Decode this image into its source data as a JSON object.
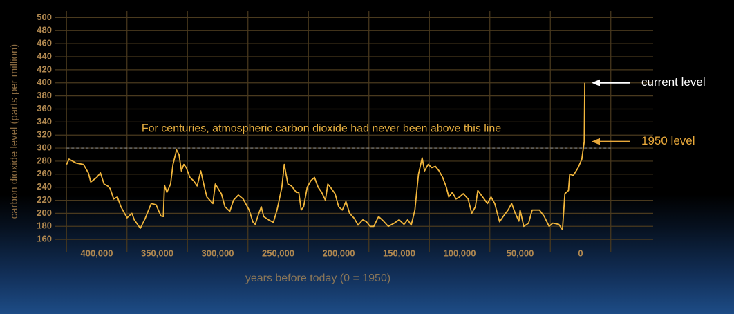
{
  "chart_data": {
    "type": "line",
    "ylabel": "carbon dioxide level (parts per million)",
    "xlabel": "years before today (0 = 1950)",
    "xlim": [
      440000,
      -60000
    ],
    "ylim": [
      140,
      510
    ],
    "xticks": [
      {
        "value": 400000,
        "label": "400,000"
      },
      {
        "value": 350000,
        "label": "350,000"
      },
      {
        "value": 300000,
        "label": "300,000"
      },
      {
        "value": 250000,
        "label": "250,000"
      },
      {
        "value": 200000,
        "label": "200,000"
      },
      {
        "value": 150000,
        "label": "150,000"
      },
      {
        "value": 100000,
        "label": "100,000"
      },
      {
        "value": 50000,
        "label": "50,000"
      },
      0
    ],
    "xgrid": [
      425000,
      375000,
      325000,
      275000,
      225000,
      175000,
      125000,
      75000,
      25000,
      -25000
    ],
    "yticks": [
      160,
      180,
      200,
      220,
      240,
      260,
      280,
      300,
      320,
      340,
      360,
      380,
      400,
      420,
      440,
      460,
      480,
      500
    ],
    "grid": true,
    "threshold": {
      "value": 300,
      "label": "For centuries, atmospheric carbon dioxide had never been above this line"
    },
    "annotations": [
      {
        "text": "current level",
        "value": 400,
        "color": "#ffffff"
      },
      {
        "text": "1950 level",
        "value": 310,
        "color": "#e8a83a"
      }
    ],
    "series": [
      {
        "name": "CO2",
        "color": "#f2b63c",
        "x": [
          425000,
          423000,
          417000,
          411000,
          407000,
          405000,
          400000,
          397000,
          394000,
          391000,
          389000,
          386000,
          383000,
          380000,
          375000,
          371000,
          369000,
          364000,
          360000,
          355000,
          351000,
          347000,
          345000,
          344000,
          342000,
          339000,
          337000,
          334000,
          332000,
          330000,
          328000,
          326000,
          323000,
          320000,
          317000,
          314000,
          311000,
          309000,
          304000,
          302000,
          297000,
          294000,
          290000,
          287000,
          283000,
          279000,
          274000,
          271000,
          269000,
          266000,
          264000,
          262000,
          258000,
          254000,
          251000,
          250000,
          247000,
          245000,
          242000,
          239000,
          235000,
          233000,
          231000,
          229000,
          226000,
          223000,
          220000,
          217000,
          214000,
          211000,
          209000,
          206000,
          203000,
          200000,
          197000,
          194000,
          191000,
          187000,
          184000,
          180000,
          177000,
          174000,
          171000,
          167000,
          163000,
          159000,
          154000,
          150000,
          146000,
          143000,
          140000,
          137000,
          134000,
          131000,
          129000,
          126000,
          123000,
          120000,
          117000,
          114000,
          111000,
          109000,
          106000,
          103000,
          100000,
          97000,
          93000,
          90000,
          87000,
          85000,
          81000,
          77000,
          74000,
          71000,
          67000,
          64000,
          60000,
          57000,
          54000,
          51000,
          50000,
          47000,
          43000,
          40000,
          34000,
          30000,
          26000,
          23000,
          18000,
          15000,
          13000,
          10000,
          9000,
          6000,
          2000,
          -1000,
          -3000,
          -3500
        ],
        "values": [
          275,
          283,
          277,
          275,
          262,
          248,
          255,
          262,
          245,
          242,
          238,
          222,
          225,
          210,
          193,
          200,
          190,
          177,
          192,
          215,
          213,
          196,
          195,
          243,
          232,
          245,
          275,
          297,
          290,
          265,
          275,
          270,
          255,
          250,
          242,
          265,
          240,
          225,
          215,
          245,
          230,
          210,
          203,
          220,
          228,
          222,
          205,
          187,
          183,
          200,
          210,
          195,
          190,
          186,
          205,
          213,
          240,
          275,
          245,
          242,
          232,
          232,
          205,
          210,
          240,
          250,
          255,
          240,
          232,
          220,
          245,
          238,
          230,
          210,
          205,
          218,
          200,
          192,
          182,
          190,
          187,
          180,
          180,
          195,
          188,
          180,
          185,
          190,
          183,
          190,
          182,
          205,
          260,
          285,
          265,
          275,
          270,
          272,
          265,
          255,
          240,
          225,
          232,
          222,
          225,
          230,
          222,
          200,
          210,
          235,
          225,
          215,
          225,
          215,
          187,
          195,
          205,
          215,
          200,
          188,
          205,
          180,
          185,
          205,
          205,
          195,
          180,
          185,
          183,
          175,
          230,
          235,
          260,
          258,
          270,
          283,
          310,
          400
        ]
      }
    ]
  }
}
